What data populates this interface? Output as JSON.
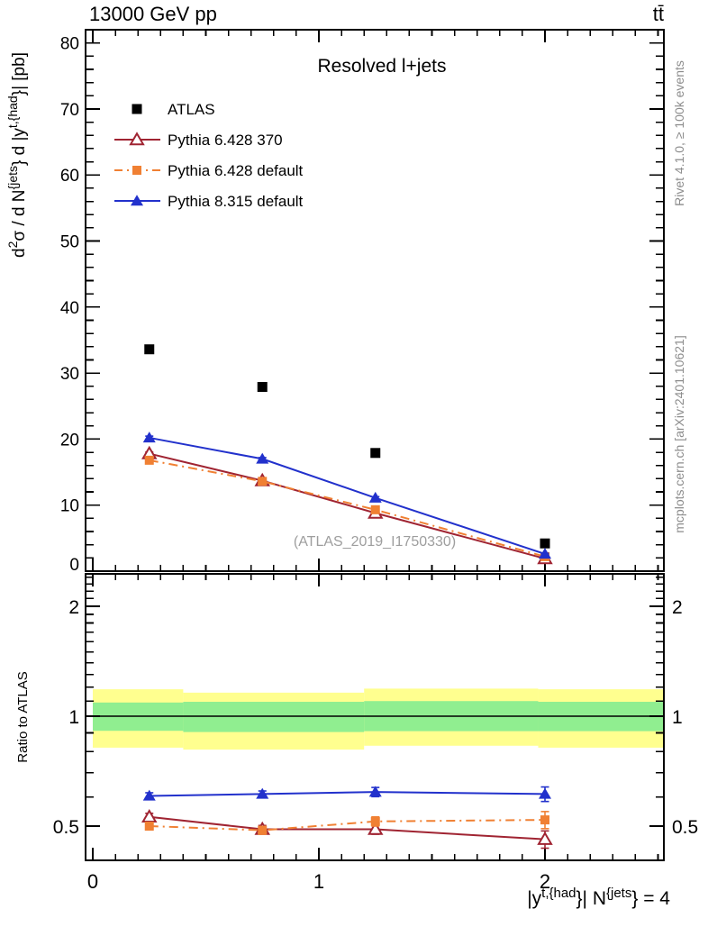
{
  "header": {
    "left": "13000 GeV pp",
    "right": "tt̄"
  },
  "credits": {
    "right_top": "Rivet 4.1.0, ≥ 100k events",
    "right_bottom": "mcplots.cern.ch [arXiv:2401.10621]"
  },
  "watermark": "(ATLAS_2019_I1750330)",
  "colors": {
    "atlas": "#000000",
    "pythia6_370": "#a02432",
    "pythia6_default": "#f08033",
    "pythia8_default": "#2231cc",
    "yellow_band": "#ffff8f",
    "green_band": "#90ee90",
    "frame": "#000000",
    "credit_gray": "#8c8c8c",
    "watermark_gray": "#9e9e9e"
  },
  "legend": {
    "items": [
      {
        "label": "ATLAS",
        "color": "#000000",
        "marker": "square",
        "line": "none"
      },
      {
        "label": "Pythia 6.428 370",
        "color": "#a02432",
        "marker": "triangle-open",
        "line": "solid"
      },
      {
        "label": "Pythia 6.428 default",
        "color": "#f08033",
        "marker": "square",
        "line": "dashdot"
      },
      {
        "label": "Pythia 8.315 default",
        "color": "#2231cc",
        "marker": "triangle",
        "line": "solid"
      }
    ]
  },
  "chart_data": [
    {
      "type": "line",
      "title": "Resolved l+jets",
      "ylabel_parts": [
        {
          "t": "d"
        },
        {
          "sup": "2"
        },
        {
          "t": "σ / d N"
        },
        {
          "sup": "{jets"
        },
        {
          "t": "} d |y"
        },
        {
          "sup": "t,{had"
        },
        {
          "t": "}| [pb]"
        }
      ],
      "xlabel_parts": [
        {
          "t": "|y"
        },
        {
          "sup": "t,{had"
        },
        {
          "t": "}| N"
        },
        {
          "sup": "{jets"
        },
        {
          "t": "} = 4"
        }
      ],
      "xlim": [
        -0.032,
        2.526
      ],
      "ylim": [
        0,
        82
      ],
      "xticks": {
        "major": [
          0,
          1,
          2
        ],
        "labels": [
          "0",
          "1",
          "2"
        ],
        "minor_step": 0.1,
        "minor_max": 2.5
      },
      "yticks": {
        "major": [
          0,
          10,
          20,
          30,
          40,
          50,
          60,
          70,
          80
        ],
        "minor_step": 2
      },
      "x": [
        0.25,
        0.75,
        1.25,
        2.0
      ],
      "bin_edges": [
        0,
        0.5,
        1.0,
        1.5,
        2.5
      ],
      "series": [
        {
          "name": "ATLAS",
          "color": "#000000",
          "marker": "square",
          "line": "none",
          "values": [
            33.6,
            27.9,
            17.9,
            4.2
          ],
          "err": [
            0.5,
            0.45,
            0.35,
            0.2
          ]
        },
        {
          "name": "Pythia 6.428 370",
          "color": "#a02432",
          "marker": "triangle-open",
          "line": "solid",
          "values": [
            17.8,
            13.7,
            8.8,
            1.9
          ],
          "err": [
            0.25,
            0.2,
            0.18,
            0.1
          ]
        },
        {
          "name": "Pythia 6.428 default",
          "color": "#f08033",
          "marker": "square",
          "line": "dashdot",
          "values": [
            16.8,
            13.6,
            9.3,
            2.2
          ],
          "err": [
            0.25,
            0.2,
            0.18,
            0.1
          ]
        },
        {
          "name": "Pythia 8.315 default",
          "color": "#2231cc",
          "marker": "triangle",
          "line": "solid",
          "values": [
            20.2,
            17.0,
            11.1,
            2.6
          ],
          "err": [
            0.25,
            0.2,
            0.18,
            0.1
          ]
        }
      ]
    },
    {
      "type": "line",
      "ylabel": "Ratio to ATLAS",
      "scale": "log",
      "ylim": [
        0.403,
        2.45
      ],
      "reference": 1,
      "yticks": {
        "major": [
          {
            "v": 0.5,
            "label": "0.5"
          },
          {
            "v": 1,
            "label": "1"
          },
          {
            "v": 2,
            "label": "2"
          }
        ],
        "minor": [
          0.6,
          0.7,
          0.8,
          0.9,
          1.1,
          1.2,
          1.3,
          1.4,
          1.5,
          1.6,
          1.7,
          1.8,
          1.9,
          2.1,
          2.2,
          2.3,
          2.4
        ]
      },
      "bands": {
        "yellow": [
          {
            "x0": 0.0,
            "x1": 0.4,
            "lo": 0.82,
            "hi": 1.185
          },
          {
            "x0": 0.4,
            "x1": 1.2,
            "lo": 0.81,
            "hi": 1.16
          },
          {
            "x0": 1.2,
            "x1": 1.97,
            "lo": 0.83,
            "hi": 1.19
          },
          {
            "x0": 1.97,
            "x1": 2.526,
            "lo": 0.82,
            "hi": 1.185
          }
        ],
        "green": [
          {
            "x0": 0.0,
            "x1": 0.4,
            "lo": 0.912,
            "hi": 1.09
          },
          {
            "x0": 0.4,
            "x1": 1.2,
            "lo": 0.905,
            "hi": 1.095
          },
          {
            "x0": 1.2,
            "x1": 1.97,
            "lo": 0.91,
            "hi": 1.1
          },
          {
            "x0": 1.97,
            "x1": 2.526,
            "lo": 0.91,
            "hi": 1.095
          }
        ]
      },
      "x": [
        0.25,
        0.75,
        1.25,
        2.0
      ],
      "series": [
        {
          "name": "Pythia 6.428 370",
          "color": "#a02432",
          "marker": "triangle-open",
          "line": "solid",
          "values": [
            0.53,
            0.49,
            0.49,
            0.46
          ],
          "err": [
            0.012,
            0.012,
            0.015,
            0.025
          ]
        },
        {
          "name": "Pythia 6.428 default",
          "color": "#f08033",
          "marker": "square",
          "line": "dashdot",
          "values": [
            0.5,
            0.487,
            0.515,
            0.52
          ],
          "err": [
            0.012,
            0.012,
            0.015,
            0.028
          ]
        },
        {
          "name": "Pythia 8.315 default",
          "color": "#2231cc",
          "marker": "triangle",
          "line": "solid",
          "values": [
            0.605,
            0.612,
            0.62,
            0.612
          ],
          "err": [
            0.012,
            0.012,
            0.018,
            0.028
          ]
        }
      ]
    }
  ]
}
